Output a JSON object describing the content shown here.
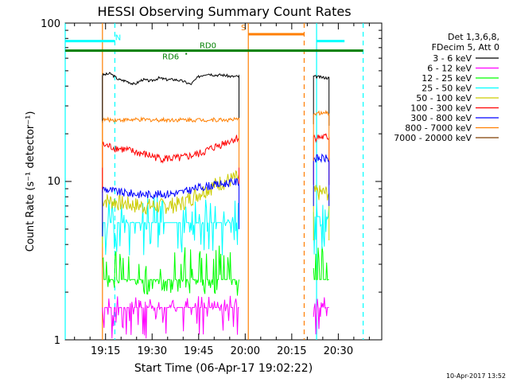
{
  "chart_data": {
    "type": "line",
    "title": "HESSI Observing Summary Count Rates",
    "xlabel": "Start Time (06-Apr-17 19:02:22)",
    "ylabel": "Count Rate (s⁻¹ detector⁻¹)",
    "y_scale": "log",
    "ylim": [
      1,
      100
    ],
    "x_axis": {
      "range": [
        "19:02",
        "20:44"
      ],
      "ticks": [
        "19:15",
        "19:30",
        "19:45",
        "20:00",
        "20:15",
        "20:30"
      ]
    },
    "y_ticks": [
      "1",
      "10",
      "100"
    ],
    "legend": {
      "header": [
        "Det 1,3,6,8,",
        "FDecim 5, Att 0"
      ],
      "placement": "right"
    },
    "flags": [
      {
        "label": "N",
        "color": "#00ffff",
        "y": 77,
        "segments": [
          [
            "19:02",
            "19:18"
          ],
          [
            "20:23",
            "20:32"
          ]
        ]
      },
      {
        "label": "S",
        "color": "#ff7f00",
        "y": 85,
        "segments": [
          [
            "20:01",
            "20:19"
          ]
        ]
      },
      {
        "label": "RD6",
        "color": "#007f00",
        "y": 67,
        "segments": [
          [
            "19:02",
            "20:38"
          ]
        ]
      },
      {
        "label": "RD0",
        "color": "#007f00"
      }
    ],
    "vlines": [
      {
        "time": "19:02",
        "color": "#00ffff",
        "style": "solid"
      },
      {
        "time": "19:18",
        "color": "#00ffff",
        "style": "dashed"
      },
      {
        "time": "20:23",
        "color": "#00ffff",
        "style": "solid"
      },
      {
        "time": "20:38",
        "color": "#00ffff",
        "style": "dashed"
      },
      {
        "time": "19:14",
        "color": "#ff7f00",
        "style": "solid"
      },
      {
        "time": "20:01",
        "color": "#ff7f00",
        "style": "solid"
      },
      {
        "time": "20:19",
        "color": "#ff7f00",
        "style": "dashed"
      }
    ],
    "intervals": [
      [
        "19:14",
        "19:58"
      ],
      [
        "20:22",
        "20:27"
      ]
    ],
    "series": [
      {
        "name": "3 - 6 keV",
        "color": "#000000",
        "values": [
          [
            47,
            48,
            44,
            43,
            41,
            44,
            43,
            45,
            44,
            44,
            43,
            41,
            46,
            48,
            47,
            47,
            46,
            46
          ],
          [
            46,
            45
          ]
        ]
      },
      {
        "name": "6 - 12 keV",
        "color": "#ff00ff",
        "values": [
          [
            1.6,
            1.6
          ],
          [
            1.6,
            1.6
          ]
        ]
      },
      {
        "name": "12 - 25 keV",
        "color": "#00ff00",
        "values": [
          [
            2.4,
            2.4
          ],
          [
            2.4,
            2.4
          ]
        ]
      },
      {
        "name": "25 - 50 keV",
        "color": "#00ffff",
        "values": [
          [
            5.5,
            5.5
          ],
          [
            6.0,
            6.0
          ]
        ]
      },
      {
        "name": "50 - 100 keV",
        "color": "#cccc00",
        "values": [
          [
            7.7,
            7.3,
            7.0,
            7.0,
            7.2,
            8.5,
            9.8,
            10.6
          ],
          [
            8.5,
            8.5
          ]
        ]
      },
      {
        "name": "100 - 300 keV",
        "color": "#ff0000",
        "values": [
          [
            17,
            16,
            15,
            14,
            14,
            15,
            17,
            19
          ],
          [
            19,
            19
          ]
        ]
      },
      {
        "name": "300 - 800 keV",
        "color": "#0000ff",
        "values": [
          [
            9.0,
            8.5,
            8.3,
            8.3,
            8.5,
            9.2,
            9.6,
            10
          ],
          [
            14,
            14
          ]
        ]
      },
      {
        "name": "800 - 7000 keV",
        "color": "#ff7f00",
        "values": [
          [
            24.5,
            24.5
          ],
          [
            27,
            27
          ]
        ]
      },
      {
        "name": "7000 - 20000 keV",
        "color": "#7f3f00",
        "values": []
      }
    ]
  },
  "timestamp": "10-Apr-2017 13:52"
}
